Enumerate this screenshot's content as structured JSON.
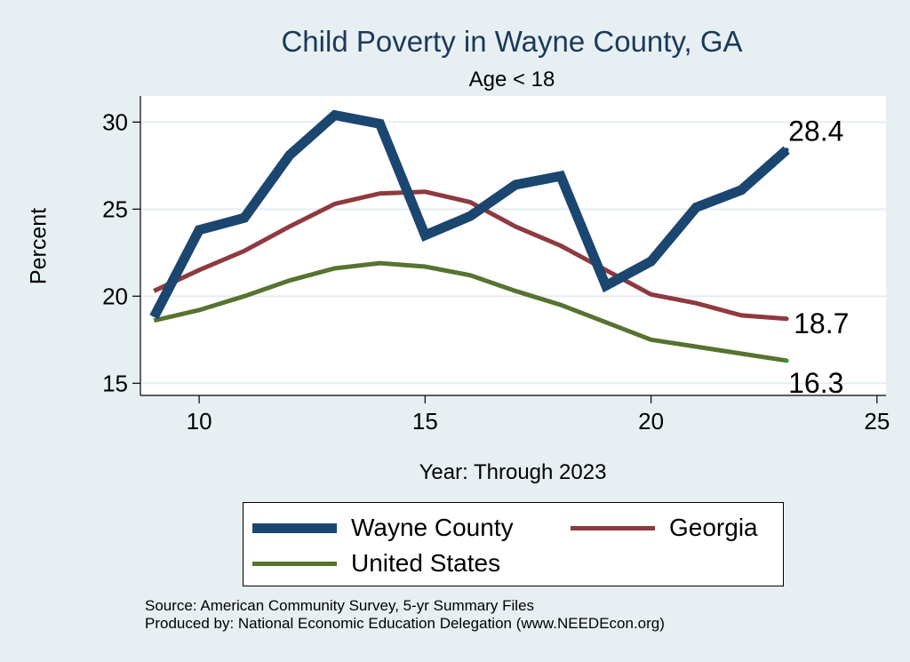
{
  "chart_data": {
    "type": "line",
    "title": "Child Poverty in Wayne County, GA",
    "subtitle": "Age < 18",
    "xlabel": "Year: Through 2023",
    "ylabel": "Percent",
    "xlim": [
      8.7,
      25.2
    ],
    "ylim": [
      14.3,
      31.5
    ],
    "xticks": [
      10,
      15,
      20,
      25
    ],
    "yticks": [
      15,
      20,
      25,
      30
    ],
    "grid": true,
    "legend_position": "bottom",
    "series": [
      {
        "name": "Wayne County",
        "color": "#1a4670",
        "x": [
          9,
          10,
          11,
          12,
          13,
          14,
          15,
          16,
          17,
          18,
          19,
          20,
          21,
          22,
          23
        ],
        "values": [
          18.8,
          23.8,
          24.5,
          28.1,
          30.4,
          29.9,
          23.5,
          24.6,
          26.4,
          26.9,
          20.6,
          22.0,
          25.1,
          26.1,
          28.4
        ],
        "end_label": "28.4"
      },
      {
        "name": "Georgia",
        "color": "#8e3a3f",
        "x": [
          9,
          10,
          11,
          12,
          13,
          14,
          15,
          16,
          17,
          18,
          19,
          20,
          21,
          22,
          23
        ],
        "values": [
          20.3,
          21.5,
          22.6,
          24.0,
          25.3,
          25.9,
          26.0,
          25.4,
          24.0,
          22.9,
          21.5,
          20.1,
          19.6,
          18.9,
          18.7
        ],
        "end_label": "18.7"
      },
      {
        "name": "United States",
        "color": "#567330",
        "x": [
          9,
          10,
          11,
          12,
          13,
          14,
          15,
          16,
          17,
          18,
          19,
          20,
          21,
          22,
          23
        ],
        "values": [
          18.6,
          19.2,
          20.0,
          20.9,
          21.6,
          21.9,
          21.7,
          21.2,
          20.3,
          19.5,
          18.5,
          17.5,
          17.1,
          16.7,
          16.3
        ],
        "end_label": "16.3"
      }
    ]
  },
  "footnotes": {
    "source": "Source: American Community Survey, 5-yr Summary Files",
    "producer": "Produced by: National Economic Education Delegation (www.NEEDEcon.org)"
  }
}
